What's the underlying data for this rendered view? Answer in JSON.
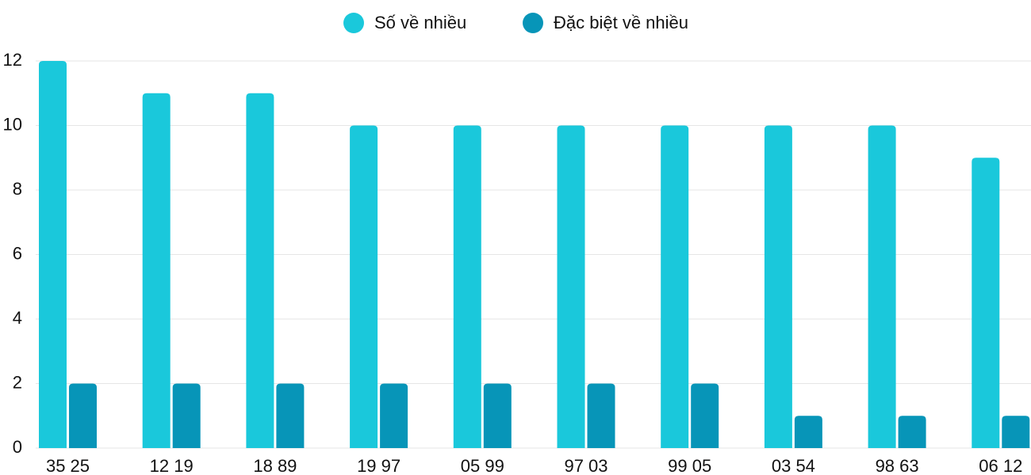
{
  "chart_data": {
    "type": "bar",
    "categories": [
      "35 25",
      "12 19",
      "18 89",
      "19 97",
      "05 99",
      "97 03",
      "99 05",
      "03 54",
      "98 63",
      "06 12"
    ],
    "series": [
      {
        "name": "Số về nhiều",
        "color": "#1ac8db",
        "values": [
          12,
          11,
          11,
          10,
          10,
          10,
          10,
          10,
          10,
          9
        ]
      },
      {
        "name": "Đặc biệt về nhiều",
        "color": "#0795b8",
        "values": [
          2,
          2,
          2,
          2,
          2,
          2,
          2,
          1,
          1,
          1
        ]
      }
    ],
    "ylim": [
      0,
      12
    ],
    "yticks": [
      0,
      2,
      4,
      6,
      8,
      10,
      12
    ],
    "grid": true,
    "legend": "top"
  }
}
